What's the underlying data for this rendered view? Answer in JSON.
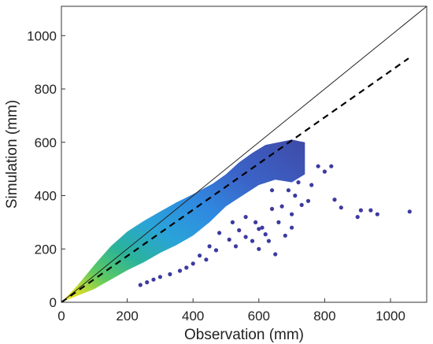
{
  "chart_data": {
    "type": "scatter",
    "title": "",
    "xlabel": "Observation (mm)",
    "ylabel": "Simulation (mm)",
    "xlim": [
      0,
      1110
    ],
    "ylim": [
      0,
      1110
    ],
    "xticks": [
      "0",
      "200",
      "400",
      "600",
      "800",
      "1000"
    ],
    "yticks": [
      "0",
      "200",
      "400",
      "600",
      "800",
      "1000"
    ],
    "xtick_values": [
      0,
      200,
      400,
      600,
      800,
      1000
    ],
    "ytick_values": [
      0,
      200,
      400,
      600,
      800,
      1000
    ],
    "grid": false,
    "colormap": "density (yellow-high, green, cyan, blue, purple-low)",
    "dense_band": {
      "upper_edge": [
        [
          0,
          0
        ],
        [
          50,
          65
        ],
        [
          100,
          140
        ],
        [
          150,
          210
        ],
        [
          200,
          265
        ],
        [
          250,
          305
        ],
        [
          300,
          340
        ],
        [
          350,
          375
        ],
        [
          400,
          405
        ],
        [
          430,
          425
        ],
        [
          460,
          445
        ],
        [
          500,
          480
        ],
        [
          540,
          525
        ],
        [
          580,
          560
        ],
        [
          620,
          590
        ],
        [
          660,
          600
        ],
        [
          700,
          610
        ],
        [
          740,
          600
        ]
      ],
      "lower_edge": [
        [
          0,
          0
        ],
        [
          50,
          25
        ],
        [
          100,
          50
        ],
        [
          150,
          85
        ],
        [
          200,
          120
        ],
        [
          250,
          150
        ],
        [
          300,
          185
        ],
        [
          350,
          215
        ],
        [
          400,
          250
        ],
        [
          450,
          300
        ],
        [
          500,
          360
        ],
        [
          550,
          400
        ],
        [
          600,
          440
        ],
        [
          650,
          460
        ],
        [
          700,
          450
        ],
        [
          740,
          480
        ]
      ]
    },
    "sparse_points": [
      [
        480,
        260
      ],
      [
        510,
        235
      ],
      [
        530,
        210
      ],
      [
        560,
        245
      ],
      [
        600,
        275
      ],
      [
        620,
        255
      ],
      [
        640,
        420
      ],
      [
        660,
        300
      ],
      [
        700,
        330
      ],
      [
        710,
        400
      ],
      [
        730,
        365
      ],
      [
        760,
        440
      ],
      [
        780,
        510
      ],
      [
        800,
        490
      ],
      [
        820,
        510
      ],
      [
        830,
        385
      ],
      [
        850,
        355
      ],
      [
        900,
        320
      ],
      [
        910,
        345
      ],
      [
        940,
        345
      ],
      [
        960,
        330
      ],
      [
        1058,
        340
      ],
      [
        560,
        320
      ],
      [
        590,
        300
      ],
      [
        610,
        280
      ],
      [
        640,
        350
      ],
      [
        670,
        360
      ],
      [
        750,
        380
      ],
      [
        690,
        420
      ],
      [
        720,
        450
      ],
      [
        450,
        210
      ],
      [
        470,
        195
      ],
      [
        420,
        175
      ],
      [
        440,
        160
      ],
      [
        400,
        145
      ],
      [
        380,
        130
      ],
      [
        360,
        118
      ],
      [
        330,
        105
      ],
      [
        300,
        95
      ],
      [
        280,
        85
      ],
      [
        260,
        75
      ],
      [
        240,
        65
      ],
      [
        520,
        300
      ],
      [
        540,
        270
      ],
      [
        580,
        230
      ],
      [
        600,
        200
      ],
      [
        630,
        230
      ],
      [
        650,
        180
      ],
      [
        680,
        250
      ],
      [
        700,
        280
      ]
    ],
    "series": [
      {
        "name": "",
        "style": "solid",
        "color": "#222222",
        "x": [
          0,
          1110
        ],
        "y": [
          0,
          1110
        ]
      },
      {
        "name": "",
        "style": "dashed",
        "color": "#000000",
        "x": [
          0,
          1055
        ],
        "y": [
          0,
          915
        ]
      }
    ]
  }
}
